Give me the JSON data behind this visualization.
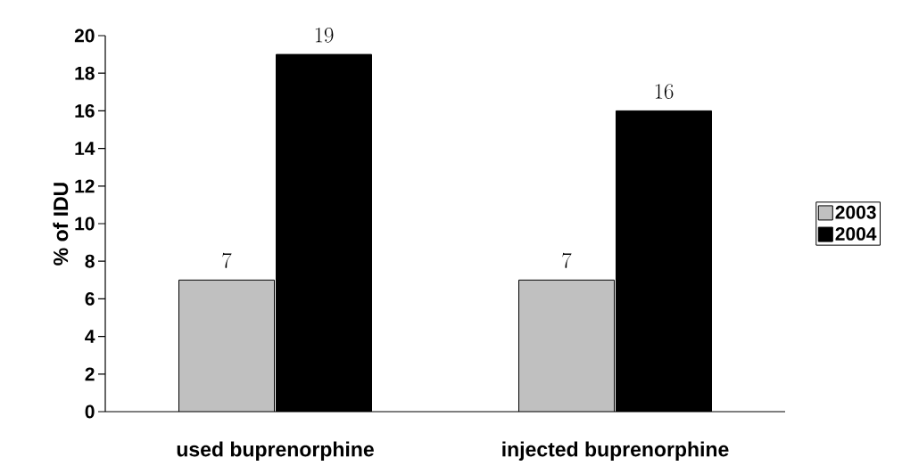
{
  "chart_data": {
    "type": "bar",
    "ylabel": "% of IDU",
    "categories": [
      "used buprenorphine",
      "injected buprenorphine"
    ],
    "series": [
      {
        "name": "2003",
        "color": "#c0c0c0",
        "values": [
          7,
          7
        ]
      },
      {
        "name": "2004",
        "color": "#000000",
        "values": [
          19,
          16
        ]
      }
    ],
    "ylim": [
      0,
      20
    ],
    "yticks": [
      0,
      2,
      4,
      6,
      8,
      10,
      12,
      14,
      16,
      18,
      20
    ],
    "data_labels": true,
    "legend": "right",
    "grid": false
  }
}
